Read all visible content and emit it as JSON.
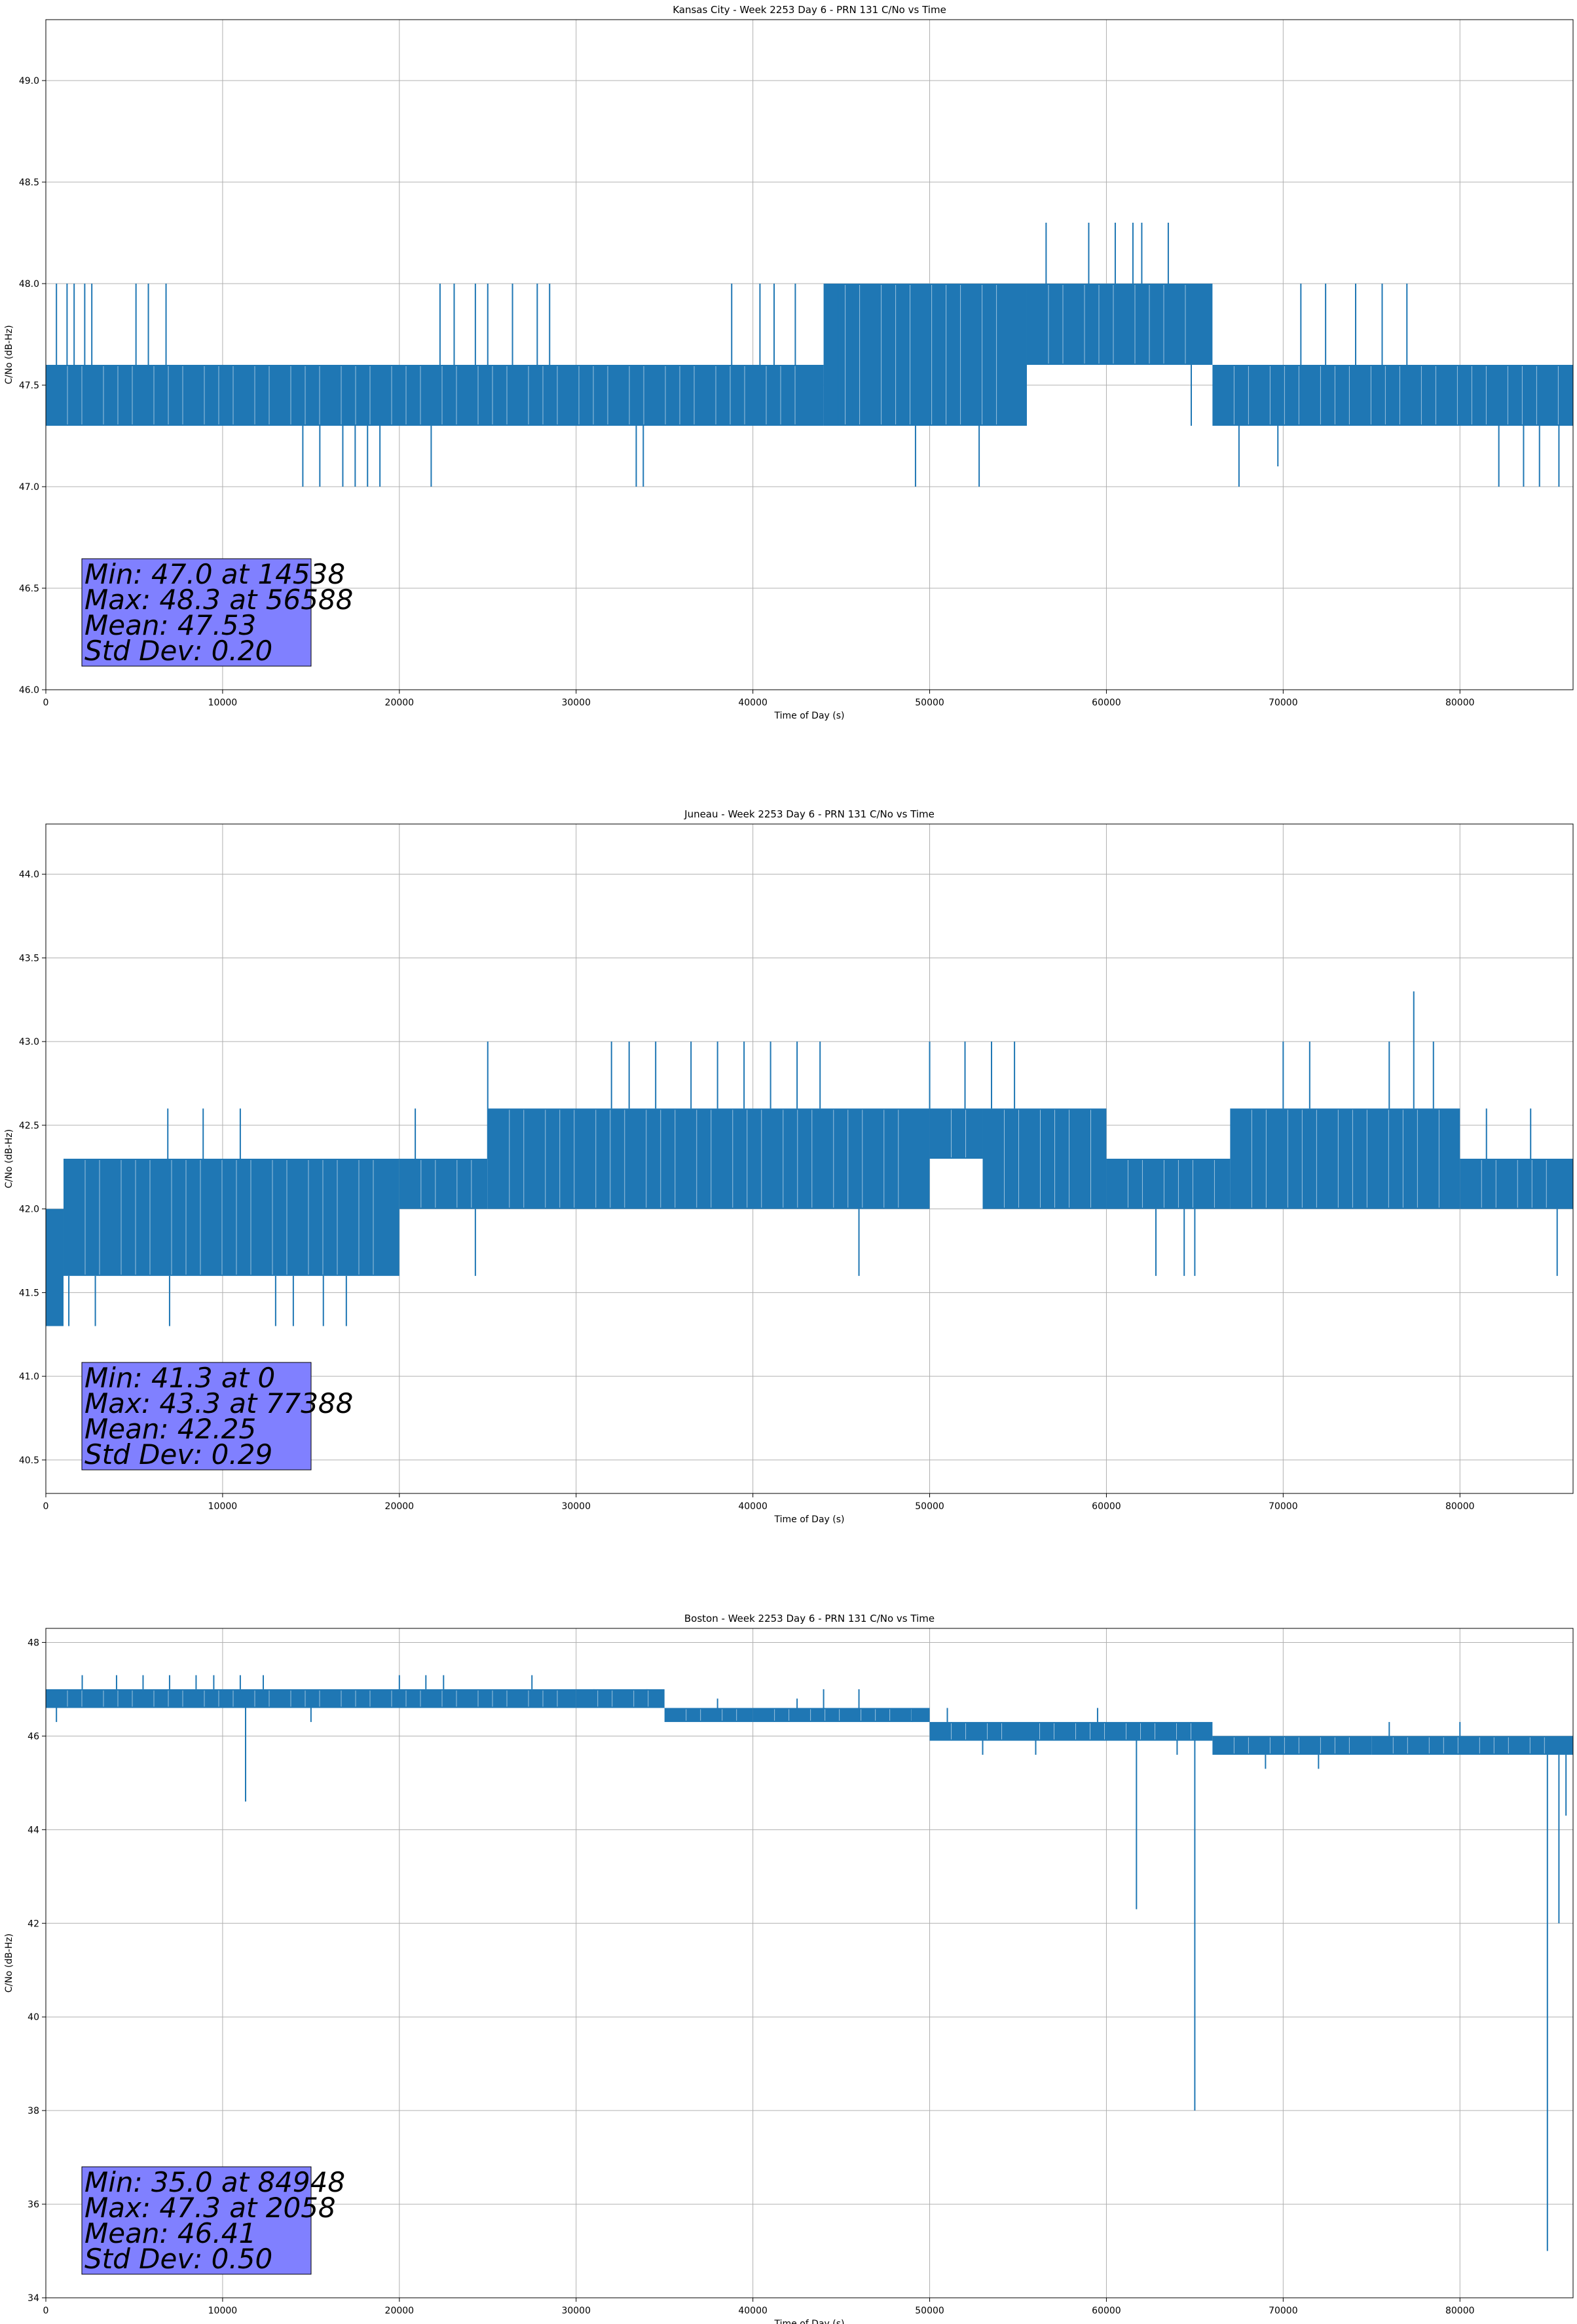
{
  "chart_data": [
    {
      "type": "line",
      "title": "Kansas City - Week 2253 Day 6 - PRN 131 C/No vs Time",
      "xlabel": "Time of Day (s)",
      "ylabel": "C/No (dB-Hz)",
      "xlim": [
        0,
        86400
      ],
      "ylim": [
        46.0,
        49.3
      ],
      "xticks": [
        0,
        10000,
        20000,
        30000,
        40000,
        50000,
        60000,
        70000,
        80000
      ],
      "yticks": [
        46.0,
        46.5,
        47.0,
        47.5,
        48.0,
        48.5,
        49.0
      ],
      "ytick_decimals": 1,
      "grid": true,
      "color": "#1f77b4",
      "stats": [
        "Min: 47.0 at 14538",
        "Max: 48.3 at 56588",
        "Mean: 47.53",
        "Std Dev: 0.20"
      ],
      "bands": [
        {
          "x": [
            0,
            44000
          ],
          "y": [
            47.3,
            47.6
          ]
        },
        {
          "x": [
            44000,
            55500
          ],
          "y": [
            47.3,
            48.0
          ]
        },
        {
          "x": [
            55500,
            66000
          ],
          "y": [
            47.6,
            48.0
          ]
        },
        {
          "x": [
            66000,
            86400
          ],
          "y": [
            47.3,
            47.6
          ]
        }
      ],
      "spikes": [
        {
          "x": 600,
          "y": 48.0
        },
        {
          "x": 1200,
          "y": 48.0
        },
        {
          "x": 1600,
          "y": 48.0
        },
        {
          "x": 2200,
          "y": 48.0
        },
        {
          "x": 2600,
          "y": 48.0
        },
        {
          "x": 5100,
          "y": 48.0
        },
        {
          "x": 5800,
          "y": 48.0
        },
        {
          "x": 6800,
          "y": 48.0
        },
        {
          "x": 14538,
          "y": 47.0
        },
        {
          "x": 15500,
          "y": 47.0
        },
        {
          "x": 16800,
          "y": 47.0
        },
        {
          "x": 17500,
          "y": 47.0
        },
        {
          "x": 18200,
          "y": 47.0
        },
        {
          "x": 18900,
          "y": 47.0
        },
        {
          "x": 21800,
          "y": 47.0
        },
        {
          "x": 22300,
          "y": 48.0
        },
        {
          "x": 23100,
          "y": 48.0
        },
        {
          "x": 24300,
          "y": 48.0
        },
        {
          "x": 25000,
          "y": 48.0
        },
        {
          "x": 26400,
          "y": 48.0
        },
        {
          "x": 27800,
          "y": 48.0
        },
        {
          "x": 28500,
          "y": 48.0
        },
        {
          "x": 33400,
          "y": 47.0
        },
        {
          "x": 33800,
          "y": 47.0
        },
        {
          "x": 38800,
          "y": 48.0
        },
        {
          "x": 40400,
          "y": 48.0
        },
        {
          "x": 41200,
          "y": 48.0
        },
        {
          "x": 42400,
          "y": 48.0
        },
        {
          "x": 44800,
          "y": 48.0
        },
        {
          "x": 45600,
          "y": 48.0
        },
        {
          "x": 49200,
          "y": 47.0
        },
        {
          "x": 52800,
          "y": 47.0
        },
        {
          "x": 56588,
          "y": 48.3
        },
        {
          "x": 59000,
          "y": 48.3
        },
        {
          "x": 60500,
          "y": 48.3
        },
        {
          "x": 61500,
          "y": 48.3
        },
        {
          "x": 62000,
          "y": 48.3
        },
        {
          "x": 63500,
          "y": 48.3
        },
        {
          "x": 64800,
          "y": 47.3
        },
        {
          "x": 67500,
          "y": 47.0
        },
        {
          "x": 69700,
          "y": 47.1
        },
        {
          "x": 71000,
          "y": 48.0
        },
        {
          "x": 72400,
          "y": 48.0
        },
        {
          "x": 74100,
          "y": 48.0
        },
        {
          "x": 75600,
          "y": 48.0
        },
        {
          "x": 77000,
          "y": 48.0
        },
        {
          "x": 82200,
          "y": 47.0
        },
        {
          "x": 83600,
          "y": 47.0
        },
        {
          "x": 84500,
          "y": 47.0
        },
        {
          "x": 85600,
          "y": 47.0
        }
      ]
    },
    {
      "type": "line",
      "title": "Juneau - Week 2253 Day 6 - PRN 131 C/No vs Time",
      "xlabel": "Time of Day (s)",
      "ylabel": "C/No (dB-Hz)",
      "xlim": [
        0,
        86400
      ],
      "ylim": [
        40.3,
        44.3
      ],
      "xticks": [
        0,
        10000,
        20000,
        30000,
        40000,
        50000,
        60000,
        70000,
        80000
      ],
      "yticks": [
        40.5,
        41.0,
        41.5,
        42.0,
        42.5,
        43.0,
        43.5,
        44.0
      ],
      "ytick_decimals": 1,
      "grid": true,
      "color": "#1f77b4",
      "stats": [
        "Min: 41.3 at 0",
        "Max: 43.3 at 77388",
        "Mean: 42.25",
        "Std Dev: 0.29"
      ],
      "bands": [
        {
          "x": [
            0,
            1000
          ],
          "y": [
            41.3,
            42.0
          ]
        },
        {
          "x": [
            1000,
            20000
          ],
          "y": [
            41.6,
            42.3
          ]
        },
        {
          "x": [
            20000,
            25000
          ],
          "y": [
            42.0,
            42.3
          ]
        },
        {
          "x": [
            25000,
            50000
          ],
          "y": [
            42.0,
            42.6
          ]
        },
        {
          "x": [
            50000,
            53000
          ],
          "y": [
            42.3,
            42.6
          ]
        },
        {
          "x": [
            53000,
            60000
          ],
          "y": [
            42.0,
            42.6
          ]
        },
        {
          "x": [
            60000,
            67000
          ],
          "y": [
            42.0,
            42.3
          ]
        },
        {
          "x": [
            67000,
            80000
          ],
          "y": [
            42.0,
            42.6
          ]
        },
        {
          "x": [
            80000,
            86400
          ],
          "y": [
            42.0,
            42.3
          ]
        }
      ],
      "spikes": [
        {
          "x": 0,
          "y": 41.3
        },
        {
          "x": 600,
          "y": 41.3
        },
        {
          "x": 1300,
          "y": 41.3
        },
        {
          "x": 2800,
          "y": 41.3
        },
        {
          "x": 6900,
          "y": 42.6
        },
        {
          "x": 7000,
          "y": 41.3
        },
        {
          "x": 8900,
          "y": 42.6
        },
        {
          "x": 11000,
          "y": 42.6
        },
        {
          "x": 13000,
          "y": 41.3
        },
        {
          "x": 14000,
          "y": 41.3
        },
        {
          "x": 15700,
          "y": 41.3
        },
        {
          "x": 17000,
          "y": 41.3
        },
        {
          "x": 20900,
          "y": 42.6
        },
        {
          "x": 24300,
          "y": 41.6
        },
        {
          "x": 25000,
          "y": 43.0
        },
        {
          "x": 32000,
          "y": 43.0
        },
        {
          "x": 33000,
          "y": 43.0
        },
        {
          "x": 34500,
          "y": 43.0
        },
        {
          "x": 36500,
          "y": 43.0
        },
        {
          "x": 38000,
          "y": 43.0
        },
        {
          "x": 39500,
          "y": 43.0
        },
        {
          "x": 41000,
          "y": 43.0
        },
        {
          "x": 42500,
          "y": 43.0
        },
        {
          "x": 43800,
          "y": 43.0
        },
        {
          "x": 46000,
          "y": 41.6
        },
        {
          "x": 50000,
          "y": 43.0
        },
        {
          "x": 52000,
          "y": 43.0
        },
        {
          "x": 53500,
          "y": 43.0
        },
        {
          "x": 54800,
          "y": 43.0
        },
        {
          "x": 62800,
          "y": 41.6
        },
        {
          "x": 64400,
          "y": 41.6
        },
        {
          "x": 65000,
          "y": 41.6
        },
        {
          "x": 70000,
          "y": 43.0
        },
        {
          "x": 71500,
          "y": 43.0
        },
        {
          "x": 76000,
          "y": 43.0
        },
        {
          "x": 77388,
          "y": 43.3
        },
        {
          "x": 78500,
          "y": 43.0
        },
        {
          "x": 81500,
          "y": 42.6
        },
        {
          "x": 84000,
          "y": 42.6
        },
        {
          "x": 85500,
          "y": 41.6
        }
      ]
    },
    {
      "type": "line",
      "title": "Boston - Week 2253 Day 6 - PRN 131 C/No vs Time",
      "xlabel": "Time of Day (s)",
      "ylabel": "C/No (dB-Hz)",
      "xlim": [
        0,
        86400
      ],
      "ylim": [
        34,
        48.3
      ],
      "xticks": [
        0,
        10000,
        20000,
        30000,
        40000,
        50000,
        60000,
        70000,
        80000
      ],
      "yticks": [
        34,
        36,
        38,
        40,
        42,
        44,
        46,
        48
      ],
      "ytick_decimals": 0,
      "grid": true,
      "color": "#1f77b4",
      "stats": [
        "Min: 35.0 at 84948",
        "Max: 47.3 at 2058",
        "Mean: 46.41",
        "Std Dev: 0.50"
      ],
      "bands": [
        {
          "x": [
            0,
            30000
          ],
          "y": [
            46.6,
            47.0
          ]
        },
        {
          "x": [
            30000,
            35000
          ],
          "y": [
            46.6,
            47.0
          ]
        },
        {
          "x": [
            35000,
            40000
          ],
          "y": [
            46.3,
            46.6
          ]
        },
        {
          "x": [
            40000,
            50000
          ],
          "y": [
            46.3,
            46.6
          ]
        },
        {
          "x": [
            50000,
            55000
          ],
          "y": [
            45.9,
            46.3
          ]
        },
        {
          "x": [
            55000,
            66000
          ],
          "y": [
            45.9,
            46.3
          ]
        },
        {
          "x": [
            66000,
            75000
          ],
          "y": [
            45.6,
            46.0
          ]
        },
        {
          "x": [
            75000,
            86400
          ],
          "y": [
            45.6,
            46.0
          ]
        }
      ],
      "spikes": [
        {
          "x": 600,
          "y": 46.3
        },
        {
          "x": 2058,
          "y": 47.3
        },
        {
          "x": 4000,
          "y": 47.3
        },
        {
          "x": 5500,
          "y": 47.3
        },
        {
          "x": 7000,
          "y": 47.3
        },
        {
          "x": 8500,
          "y": 47.3
        },
        {
          "x": 9500,
          "y": 47.3
        },
        {
          "x": 11000,
          "y": 47.3
        },
        {
          "x": 11300,
          "y": 44.6
        },
        {
          "x": 12300,
          "y": 47.3
        },
        {
          "x": 15000,
          "y": 46.3
        },
        {
          "x": 20000,
          "y": 47.3
        },
        {
          "x": 21500,
          "y": 47.3
        },
        {
          "x": 22500,
          "y": 47.3
        },
        {
          "x": 27500,
          "y": 47.3
        },
        {
          "x": 31000,
          "y": 47.0
        },
        {
          "x": 34000,
          "y": 47.0
        },
        {
          "x": 38000,
          "y": 46.8
        },
        {
          "x": 42500,
          "y": 46.8
        },
        {
          "x": 44000,
          "y": 47.0
        },
        {
          "x": 46000,
          "y": 47.0
        },
        {
          "x": 49000,
          "y": 46.6
        },
        {
          "x": 51000,
          "y": 46.6
        },
        {
          "x": 53000,
          "y": 45.6
        },
        {
          "x": 56000,
          "y": 45.6
        },
        {
          "x": 59500,
          "y": 46.6
        },
        {
          "x": 61700,
          "y": 42.3
        },
        {
          "x": 64000,
          "y": 45.6
        },
        {
          "x": 65000,
          "y": 38.0
        },
        {
          "x": 69000,
          "y": 45.3
        },
        {
          "x": 72000,
          "y": 45.3
        },
        {
          "x": 76000,
          "y": 46.3
        },
        {
          "x": 80000,
          "y": 46.3
        },
        {
          "x": 84948,
          "y": 35.0
        },
        {
          "x": 85600,
          "y": 42.0
        },
        {
          "x": 86000,
          "y": 44.3
        }
      ]
    }
  ]
}
